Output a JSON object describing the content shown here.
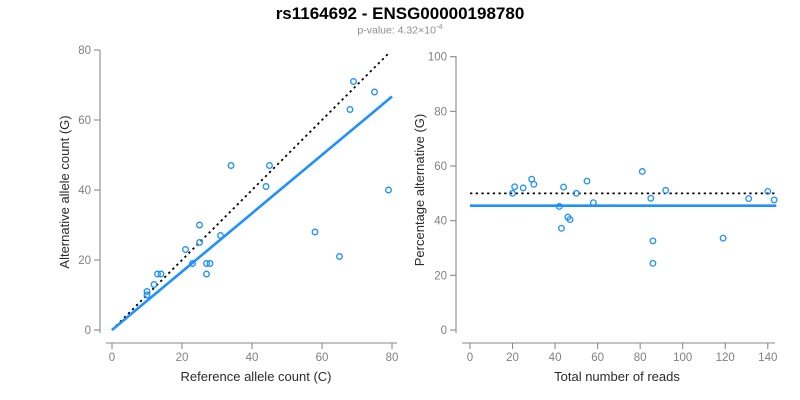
{
  "header": {
    "title": "rs1164692 - ENSG00000198780",
    "subtitle_prefix": "p-value: 4.32×10",
    "subtitle_exponent": "-4"
  },
  "colors": {
    "accent_blue": "#1E90FF",
    "dotted_line": "#000000",
    "axis_line": "#8a8a8a",
    "tick_label": "#808080",
    "axis_title": "#2b2b2b",
    "subtitle": "#8e8e8e"
  },
  "chart_data": [
    {
      "type": "scatter",
      "title": "",
      "xlabel": "Reference allele count (C)",
      "ylabel": "Alternative allele count (G)",
      "xlim": [
        0,
        81.5
      ],
      "ylim": [
        0,
        81.5
      ],
      "xticks": [
        0,
        20,
        40,
        60,
        80
      ],
      "yticks": [
        0,
        20,
        40,
        60,
        80
      ],
      "grid": false,
      "marker": "open-circle",
      "points": [
        [
          10,
          10
        ],
        [
          10,
          11
        ],
        [
          12,
          13
        ],
        [
          13,
          16
        ],
        [
          14,
          16
        ],
        [
          21,
          23
        ],
        [
          23,
          19
        ],
        [
          25,
          25
        ],
        [
          25,
          30
        ],
        [
          27,
          16
        ],
        [
          27,
          19
        ],
        [
          28,
          19
        ],
        [
          31,
          27
        ],
        [
          34,
          47
        ],
        [
          44,
          41
        ],
        [
          45,
          47
        ],
        [
          58,
          28
        ],
        [
          65,
          21
        ],
        [
          68,
          63
        ],
        [
          69,
          71
        ],
        [
          75,
          68
        ],
        [
          79,
          40
        ]
      ],
      "lines": [
        {
          "name": "identity-line",
          "style": "dotted",
          "color_key": "dotted_line",
          "x": [
            0,
            79
          ],
          "y": [
            0,
            79
          ]
        },
        {
          "name": "fit-line",
          "style": "solid",
          "color_key": "accent_blue",
          "x": [
            0,
            80
          ],
          "y": [
            0,
            66.7
          ]
        }
      ]
    },
    {
      "type": "scatter",
      "title": "",
      "xlabel": "Total number of reads",
      "ylabel": "Percentage alternative (G)",
      "xlim": [
        0,
        143.5
      ],
      "ylim": [
        0,
        101
      ],
      "xticks": [
        0,
        20,
        40,
        60,
        80,
        100,
        120,
        140
      ],
      "yticks": [
        0,
        20,
        40,
        60,
        80,
        100
      ],
      "grid": false,
      "marker": "open-circle",
      "points": [
        [
          20,
          50
        ],
        [
          21,
          52.4
        ],
        [
          25,
          52
        ],
        [
          29,
          55.2
        ],
        [
          30,
          53.3
        ],
        [
          44,
          52.3
        ],
        [
          42,
          45.2
        ],
        [
          50,
          50
        ],
        [
          55,
          54.5
        ],
        [
          43,
          37.2
        ],
        [
          46,
          41.3
        ],
        [
          47,
          40.4
        ],
        [
          58,
          46.6
        ],
        [
          81,
          58
        ],
        [
          85,
          48.2
        ],
        [
          92,
          51.1
        ],
        [
          86,
          32.6
        ],
        [
          86,
          24.4
        ],
        [
          131,
          48.1
        ],
        [
          140,
          50.7
        ],
        [
          143,
          47.6
        ],
        [
          119,
          33.6
        ]
      ],
      "lines": [
        {
          "name": "fifty-percent-line",
          "style": "dotted",
          "color_key": "dotted_line",
          "x": [
            0,
            144
          ],
          "y": [
            50,
            50
          ]
        },
        {
          "name": "mean-percentage-line",
          "style": "solid",
          "color_key": "accent_blue",
          "x": [
            0,
            144
          ],
          "y": [
            45.5,
            45.5
          ]
        }
      ]
    }
  ]
}
